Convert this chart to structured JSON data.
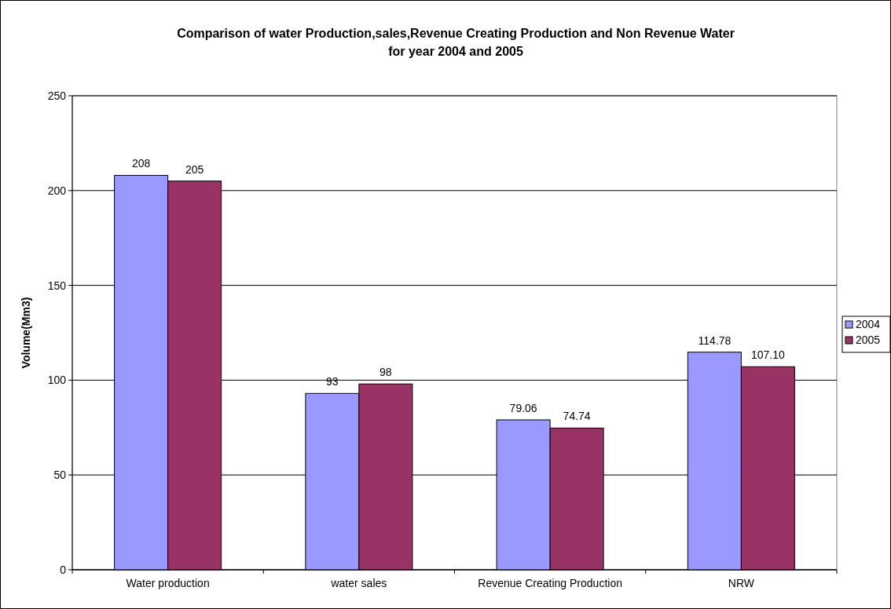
{
  "chart_data": {
    "type": "bar",
    "title": "Comparison of water Production,sales,Revenue Creating Production and Non Revenue Water\nfor year 2004 and 2005",
    "ylabel": "Volume(Mm3)",
    "categories": [
      "Water production",
      "water sales",
      "Revenue Creating Production",
      "NRW"
    ],
    "series": [
      {
        "name": "2004",
        "color": "#9999ff",
        "values": [
          208,
          93,
          79.06,
          114.78
        ],
        "value_labels": [
          "208",
          "93",
          "79.06",
          "114.78"
        ]
      },
      {
        "name": "2005",
        "color": "#993366",
        "values": [
          205,
          98,
          74.74,
          107.1
        ],
        "value_labels": [
          "205",
          "98",
          "74.74",
          "107.10"
        ]
      }
    ],
    "ylim": [
      0,
      250
    ],
    "yticks": [
      0,
      50,
      100,
      150,
      200,
      250
    ],
    "grid": "y",
    "legend": "right"
  }
}
